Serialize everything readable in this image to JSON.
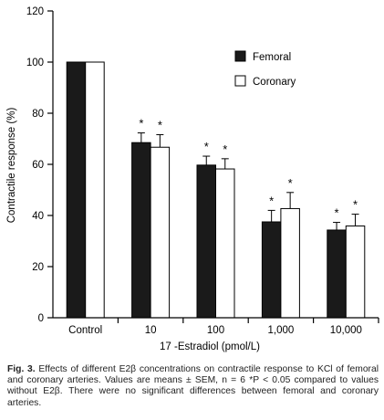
{
  "chart_data": {
    "type": "bar",
    "categories": [
      "Control",
      "10",
      "100",
      "1,000",
      "10,000"
    ],
    "xlabel": "17 -Estradiol (pmol/L)",
    "ylabel": "Contractile response (%)",
    "ylim": [
      0,
      120
    ],
    "yticks": [
      "0",
      "20",
      "40",
      "60",
      "80",
      "100",
      "120"
    ],
    "legend_position": "top-right",
    "series": [
      {
        "name": "Femoral",
        "color": "#1a1a1a",
        "values": [
          100,
          68.5,
          59.7,
          37.5,
          34.3
        ],
        "errors": [
          0,
          3.8,
          3.5,
          4.5,
          3.0
        ],
        "significance": [
          "",
          "*",
          "*",
          "*",
          "*"
        ]
      },
      {
        "name": "Coronary",
        "color": "#ffffff",
        "values": [
          100,
          66.7,
          58.2,
          42.7,
          35.9
        ],
        "errors": [
          0,
          4.9,
          4.0,
          6.3,
          4.6
        ],
        "significance": [
          "",
          "*",
          "*",
          "*",
          "*"
        ]
      }
    ]
  },
  "caption": {
    "fig_label": "Fig. 3.",
    "text": "Effects of different E2β concentrations on contractile response to KCl of femoral and coronary arteries. Values are means ± SEM, n = 6 *P < 0.05 compared to values without E2β. There were no significant differences between femoral and coronary arteries."
  }
}
